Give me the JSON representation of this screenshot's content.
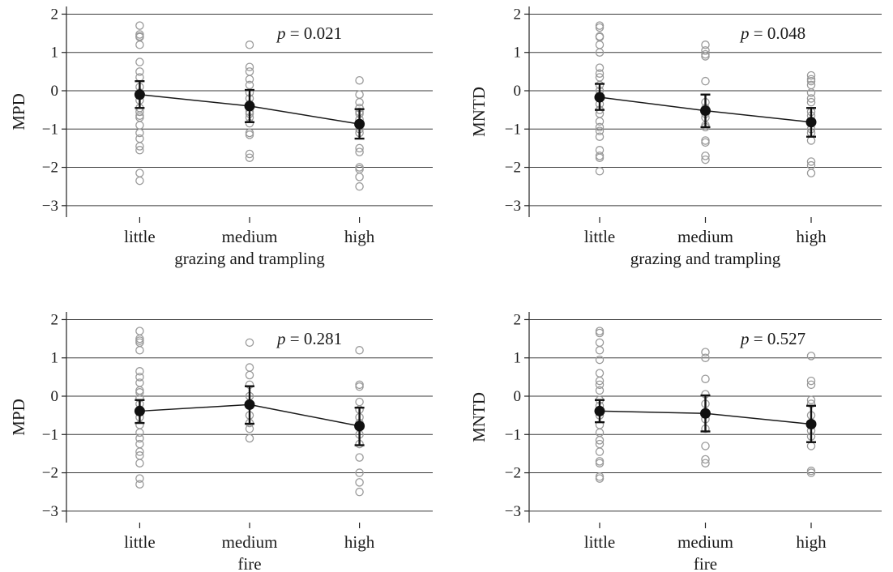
{
  "chart_data": [
    {
      "type": "scatter",
      "ylabel": "MPD",
      "xlabel": "grazing and trampling",
      "categories": [
        "little",
        "medium",
        "high"
      ],
      "ylim": [
        -3.3,
        2.2
      ],
      "yticks": [
        -3,
        -2,
        -1,
        0,
        1,
        2
      ],
      "ytick_labels": [
        "−3",
        "−2",
        "−1",
        "0",
        "1",
        "2"
      ],
      "grid": true,
      "annotation": {
        "p_label": "p",
        "rest": " = 0.021"
      },
      "mean": [
        -0.1,
        -0.4,
        -0.87
      ],
      "ci_low": [
        -0.45,
        -0.82,
        -1.25
      ],
      "ci_high": [
        0.25,
        0.02,
        -0.48
      ],
      "points": [
        [
          1.7,
          1.47,
          1.42,
          1.4,
          1.2,
          0.75,
          0.5,
          0.35,
          0.1,
          -0.05,
          -0.25,
          -0.45,
          -0.55,
          -0.65,
          -0.7,
          -0.9,
          -1.1,
          -1.25,
          -1.45,
          -1.55,
          -2.15,
          -2.35
        ],
        [
          1.2,
          0.62,
          0.5,
          0.3,
          0.15,
          -0.05,
          -0.2,
          -0.35,
          -0.55,
          -0.6,
          -0.7,
          -0.85,
          -1.1,
          -1.15,
          -1.65,
          -1.75
        ],
        [
          0.27,
          -0.1,
          -0.3,
          -0.45,
          -0.55,
          -0.6,
          -0.75,
          -0.9,
          -1.0,
          -1.1,
          -1.5,
          -1.6,
          -2.0,
          -2.05,
          -2.25,
          -2.5
        ]
      ]
    },
    {
      "type": "scatter",
      "ylabel": "MNTD",
      "xlabel": "grazing and trampling",
      "categories": [
        "little",
        "medium",
        "high"
      ],
      "ylim": [
        -3.3,
        2.2
      ],
      "yticks": [
        -3,
        -2,
        -1,
        0,
        1,
        2
      ],
      "ytick_labels": [
        "−3",
        "−2",
        "−1",
        "0",
        "1",
        "2"
      ],
      "grid": true,
      "annotation": {
        "p_label": "p",
        "rest": " = 0.048"
      },
      "mean": [
        -0.17,
        -0.52,
        -0.82
      ],
      "ci_low": [
        -0.5,
        -0.95,
        -1.2
      ],
      "ci_high": [
        0.18,
        -0.1,
        -0.45
      ],
      "points": [
        [
          1.7,
          1.65,
          1.42,
          1.4,
          1.2,
          1.0,
          0.6,
          0.45,
          0.35,
          0.15,
          0.0,
          -0.2,
          -0.35,
          -0.5,
          -0.6,
          -0.8,
          -0.95,
          -1.05,
          -1.2,
          -1.55,
          -1.7,
          -1.75,
          -2.1
        ],
        [
          1.2,
          1.05,
          0.95,
          0.9,
          0.25,
          -0.3,
          -0.45,
          -0.6,
          -0.7,
          -0.9,
          -0.95,
          -1.3,
          -1.35,
          -1.7,
          -1.8
        ],
        [
          0.4,
          0.3,
          0.25,
          0.15,
          -0.05,
          -0.2,
          -0.3,
          -0.55,
          -0.65,
          -0.8,
          -1.0,
          -1.1,
          -1.3,
          -1.85,
          -1.95,
          -2.15
        ]
      ]
    },
    {
      "type": "scatter",
      "ylabel": "MPD",
      "xlabel": "fire",
      "categories": [
        "little",
        "medium",
        "high"
      ],
      "ylim": [
        -3.3,
        2.2
      ],
      "yticks": [
        -3,
        -2,
        -1,
        0,
        1,
        2
      ],
      "ytick_labels": [
        "−3",
        "−2",
        "−1",
        "0",
        "1",
        "2"
      ],
      "grid": true,
      "annotation": {
        "p_label": "p",
        "rest": " = 0.281"
      },
      "mean": [
        -0.39,
        -0.22,
        -0.78
      ],
      "ci_low": [
        -0.7,
        -0.72,
        -1.28
      ],
      "ci_high": [
        -0.1,
        0.26,
        -0.3
      ],
      "points": [
        [
          1.7,
          1.5,
          1.45,
          1.4,
          1.2,
          0.65,
          0.5,
          0.35,
          0.15,
          0.1,
          -0.05,
          -0.2,
          -0.35,
          -0.55,
          -0.75,
          -0.95,
          -1.1,
          -1.25,
          -1.45,
          -1.55,
          -1.75,
          -2.15,
          -2.3
        ],
        [
          1.4,
          0.75,
          0.55,
          0.3,
          0.0,
          -0.25,
          -0.5,
          -0.7,
          -0.85,
          -1.1
        ],
        [
          1.2,
          0.3,
          0.25,
          -0.15,
          -0.35,
          -0.55,
          -0.7,
          -1.0,
          -1.25,
          -1.6,
          -2.0,
          -2.25,
          -2.5
        ]
      ]
    },
    {
      "type": "scatter",
      "ylabel": "MNTD",
      "xlabel": "fire",
      "categories": [
        "little",
        "medium",
        "high"
      ],
      "ylim": [
        -3.3,
        2.2
      ],
      "yticks": [
        -3,
        -2,
        -1,
        0,
        1,
        2
      ],
      "ytick_labels": [
        "−3",
        "−2",
        "−1",
        "0",
        "1",
        "2"
      ],
      "grid": true,
      "annotation": {
        "p_label": "p",
        "rest": " = 0.527"
      },
      "mean": [
        -0.39,
        -0.45,
        -0.73
      ],
      "ci_low": [
        -0.68,
        -0.92,
        -1.2
      ],
      "ci_high": [
        -0.1,
        0.02,
        -0.25
      ],
      "points": [
        [
          1.7,
          1.65,
          1.4,
          1.2,
          0.95,
          0.6,
          0.4,
          0.3,
          0.15,
          -0.1,
          -0.25,
          -0.5,
          -0.75,
          -0.95,
          -1.15,
          -1.25,
          -1.45,
          -1.7,
          -1.75,
          -2.1,
          -2.15
        ],
        [
          1.15,
          1.0,
          0.45,
          0.05,
          -0.2,
          -0.45,
          -0.6,
          -0.85,
          -1.3,
          -1.65,
          -1.75
        ],
        [
          1.05,
          0.4,
          0.3,
          -0.1,
          -0.2,
          -0.5,
          -0.9,
          -1.05,
          -1.3,
          -1.95,
          -2.0
        ]
      ]
    }
  ]
}
